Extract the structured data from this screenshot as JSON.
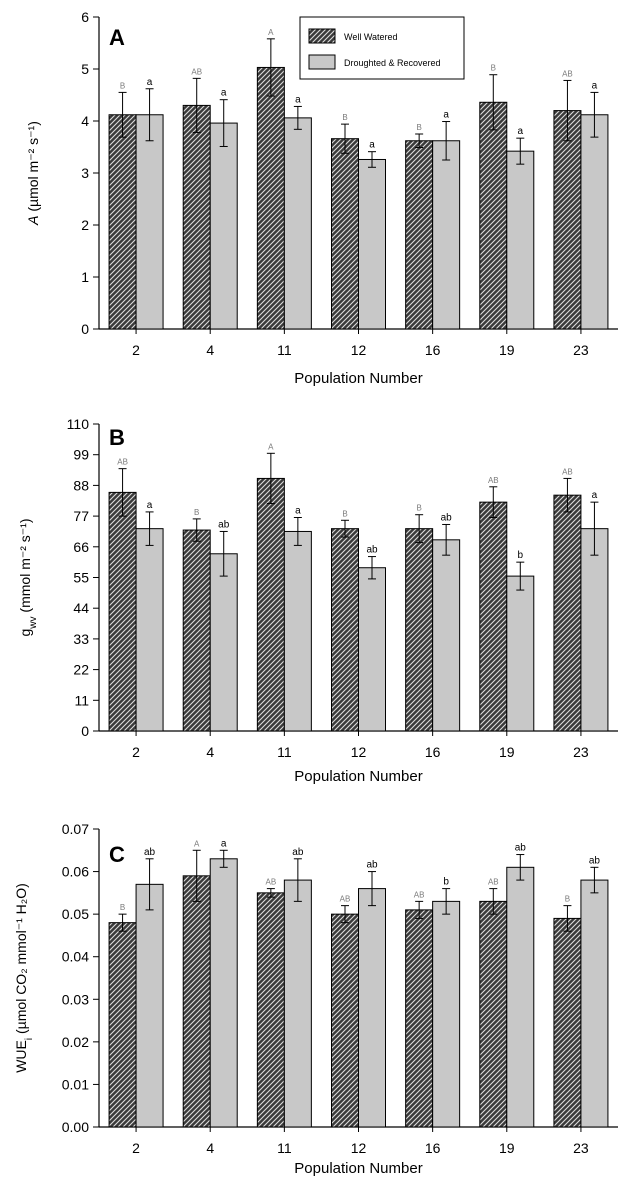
{
  "legend": {
    "items": [
      {
        "label": "Well Watered",
        "pattern": "hatched"
      },
      {
        "label": "Droughted & Recovered",
        "pattern": "gray"
      }
    ],
    "placement": "top-center (panel A)"
  },
  "colors": {
    "bar_gray": "#c8c8c8",
    "hatch_bg": "#3a3a3a",
    "hatch_line": "#dcdcdc",
    "axis": "#000000",
    "letter_gray": "#7a7a7a"
  },
  "chart_data": [
    {
      "type": "bar",
      "panel_letter": "A",
      "categories": [
        "2",
        "4",
        "11",
        "12",
        "16",
        "19",
        "23"
      ],
      "xlabel": "Population Number",
      "ylabel_main": "A",
      "ylabel_rest": " (µmol m⁻² s⁻¹)",
      "ylim": [
        0,
        6
      ],
      "yticks": [
        0,
        1,
        2,
        3,
        4,
        5,
        6
      ],
      "ytick_labels": [
        "0",
        "1",
        "2",
        "3",
        "4",
        "5",
        "6"
      ],
      "series": [
        {
          "name": "Well Watered",
          "values": [
            4.12,
            4.3,
            5.03,
            3.66,
            3.62,
            4.36,
            4.2
          ],
          "errors": [
            0.43,
            0.52,
            0.55,
            0.28,
            0.13,
            0.53,
            0.58
          ],
          "letters": [
            "B",
            "AB",
            "A",
            "B",
            "B",
            "B",
            "AB"
          ]
        },
        {
          "name": "Droughted & Recovered",
          "values": [
            4.12,
            3.96,
            4.06,
            3.26,
            3.62,
            3.42,
            4.12
          ],
          "errors": [
            0.5,
            0.45,
            0.22,
            0.15,
            0.37,
            0.25,
            0.43
          ],
          "letters": [
            "a",
            "a",
            "a",
            "a",
            "a",
            "a",
            "a"
          ]
        }
      ]
    },
    {
      "type": "bar",
      "panel_letter": "B",
      "categories": [
        "2",
        "4",
        "11",
        "12",
        "16",
        "19",
        "23"
      ],
      "xlabel": "Population Number",
      "ylabel_main": "g",
      "ylabel_sub": "wv",
      "ylabel_rest": " (mmol m⁻² s⁻¹)",
      "ylim": [
        0,
        110
      ],
      "yticks": [
        0,
        11,
        22,
        33,
        44,
        55,
        66,
        77,
        88,
        99,
        110
      ],
      "ytick_labels": [
        "0",
        "11",
        "22",
        "33",
        "44",
        "55",
        "66",
        "77",
        "88",
        "99",
        "110"
      ],
      "series": [
        {
          "name": "Well Watered",
          "values": [
            85.5,
            72,
            90.5,
            72.5,
            72.5,
            82,
            84.5
          ],
          "errors": [
            8.5,
            4,
            9,
            3,
            5,
            5.5,
            6
          ],
          "letters": [
            "AB",
            "B",
            "A",
            "B",
            "B",
            "AB",
            "AB"
          ]
        },
        {
          "name": "Droughted & Recovered",
          "values": [
            72.5,
            63.5,
            71.5,
            58.5,
            68.5,
            55.5,
            72.5
          ],
          "errors": [
            6,
            8,
            5,
            4,
            5.5,
            5,
            9.5
          ],
          "letters": [
            "a",
            "ab",
            "a",
            "ab",
            "ab",
            "b",
            "a"
          ]
        }
      ]
    },
    {
      "type": "bar",
      "panel_letter": "C",
      "categories": [
        "2",
        "4",
        "11",
        "12",
        "16",
        "19",
        "23"
      ],
      "xlabel": "Population Number",
      "ylabel_main": "WUE",
      "ylabel_sub": "i",
      "ylabel_rest": " (µmol CO₂ mmol⁻¹ H₂O)",
      "ylim": [
        0,
        0.07
      ],
      "yticks": [
        0,
        0.01,
        0.02,
        0.03,
        0.04,
        0.05,
        0.06,
        0.07
      ],
      "ytick_labels": [
        "0.00",
        "0.01",
        "0.02",
        "0.03",
        "0.04",
        "0.05",
        "0.06",
        "0.07"
      ],
      "series": [
        {
          "name": "Well Watered",
          "values": [
            0.048,
            0.059,
            0.055,
            0.05,
            0.051,
            0.053,
            0.049
          ],
          "errors": [
            0.002,
            0.006,
            0.001,
            0.002,
            0.002,
            0.003,
            0.003
          ],
          "letters": [
            "B",
            "A",
            "AB",
            "AB",
            "AB",
            "AB",
            "B"
          ]
        },
        {
          "name": "Droughted & Recovered",
          "values": [
            0.057,
            0.063,
            0.058,
            0.056,
            0.053,
            0.061,
            0.058
          ],
          "errors": [
            0.006,
            0.002,
            0.005,
            0.004,
            0.003,
            0.003,
            0.003
          ],
          "letters": [
            "ab",
            "a",
            "ab",
            "ab",
            "b",
            "ab",
            "ab"
          ]
        }
      ]
    }
  ]
}
